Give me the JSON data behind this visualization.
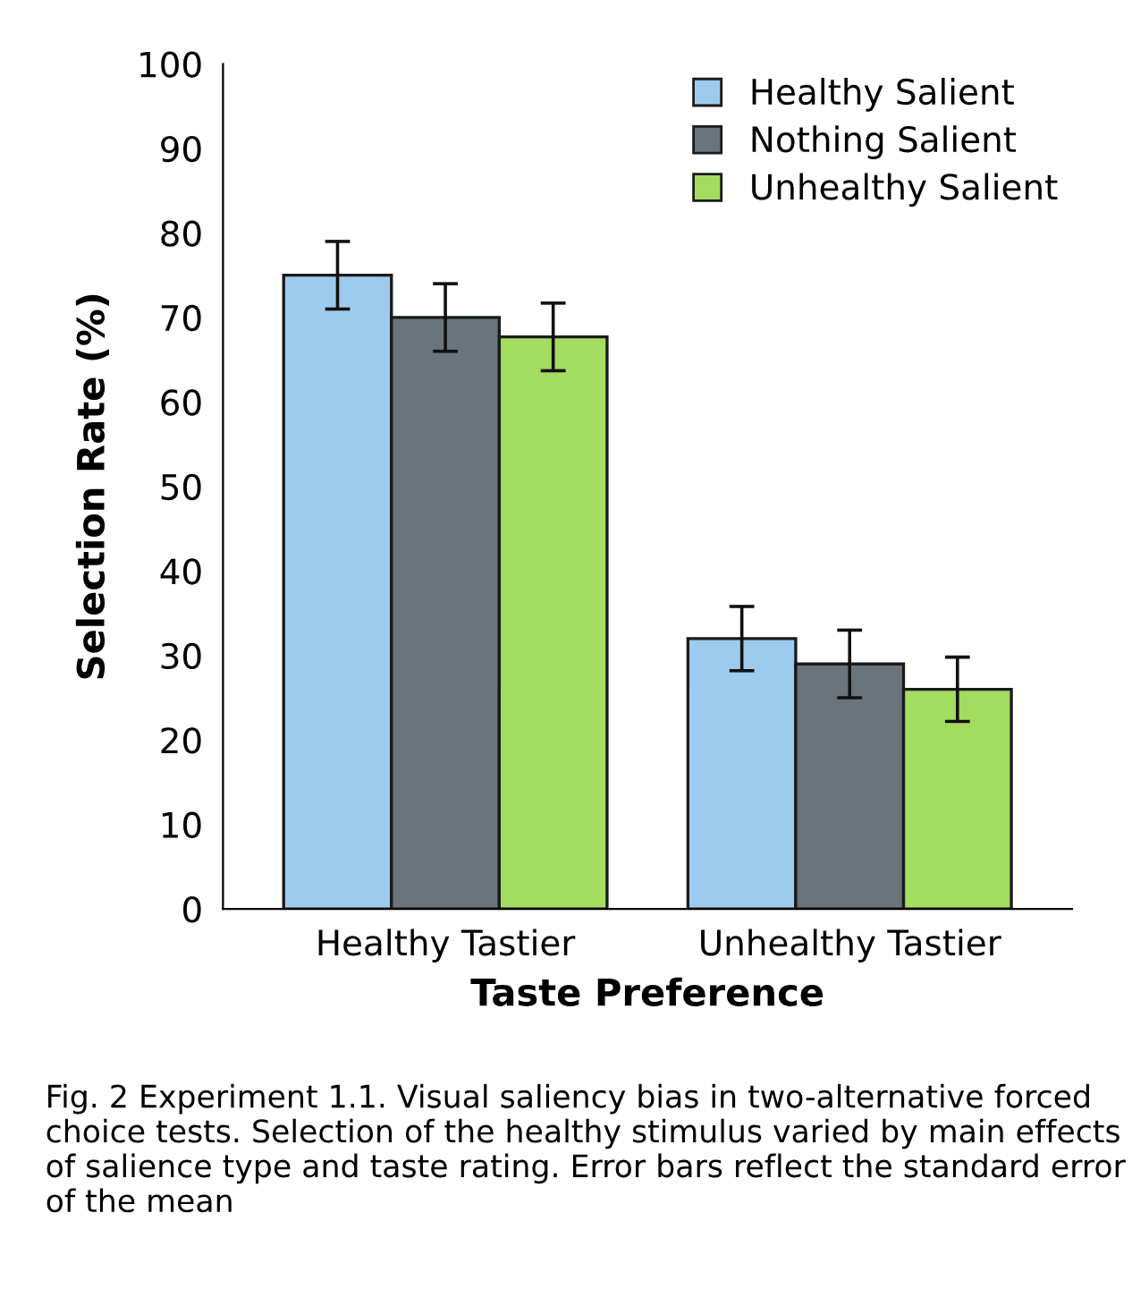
{
  "chart_data": {
    "type": "bar",
    "xlabel": "Taste Preference",
    "ylabel": "Selection Rate (%)",
    "categories": [
      "Healthy Tastier",
      "Unhealthy Tastier"
    ],
    "series": [
      {
        "name": "Healthy Salient",
        "color": "#9dcbee",
        "values": [
          75,
          32
        ],
        "errors": [
          4,
          3.8
        ]
      },
      {
        "name": "Nothing Salient",
        "color": "#69747c",
        "values": [
          70,
          29
        ],
        "errors": [
          4,
          4
        ]
      },
      {
        "name": "Unhealthy Salient",
        "color": "#a3dc5e",
        "values": [
          67.7,
          26
        ],
        "errors": [
          4,
          3.8
        ]
      }
    ],
    "ylim": [
      0,
      100
    ],
    "yticks": [
      0,
      10,
      20,
      30,
      40,
      50,
      60,
      70,
      80,
      90,
      100
    ],
    "grid": false,
    "legend": "top right",
    "annotations": [
      "Fig. 2 Experiment 1.1. Visual saliency bias in two-alternative forced choice tests. Selection of the healthy stimulus varied by main effects of salience type and taste rating. Error bars reflect the standard error of the mean"
    ]
  }
}
